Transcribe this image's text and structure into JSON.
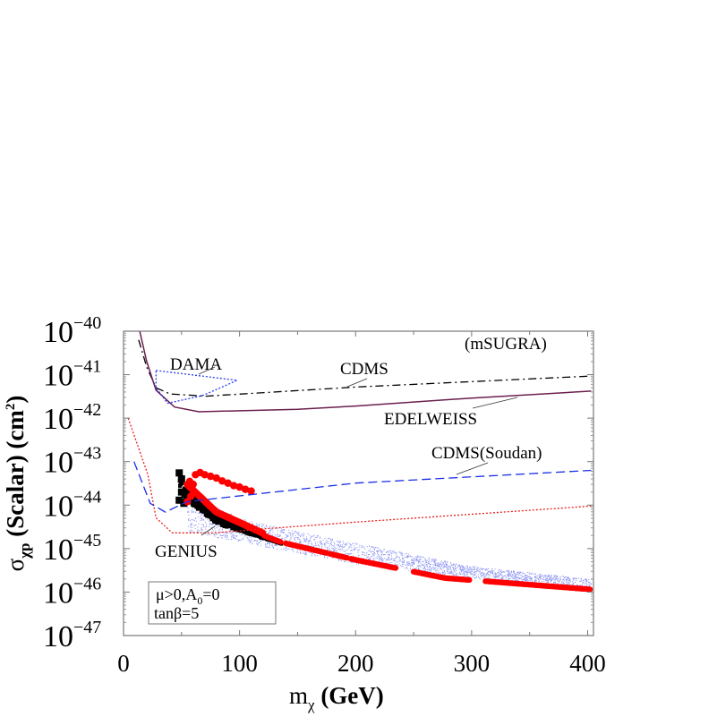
{
  "chart_data": {
    "type": "scatter",
    "title": "",
    "xlabel": "m",
    "xlabel_sub": "χ",
    "xlabel_unit": "(GeV)",
    "ylabel": "σ",
    "ylabel_sub": "χp",
    "ylabel_rest": "(Scalar) (cm",
    "ylabel_sup": "2",
    "ylabel_end": ")",
    "xlim": [
      0,
      405
    ],
    "ylim": [
      1e-47,
      1e-40
    ],
    "yscale": "log",
    "grid": false,
    "x_ticks": [
      0,
      100,
      200,
      300,
      400
    ],
    "y_ticks": [
      {
        "base": "10",
        "exp": "−40",
        "value": 1e-40
      },
      {
        "base": "10",
        "exp": "−41",
        "value": 1e-41
      },
      {
        "base": "10",
        "exp": "−42",
        "value": 1e-42
      },
      {
        "base": "10",
        "exp": "−43",
        "value": 1e-43
      },
      {
        "base": "10",
        "exp": "−44",
        "value": 1e-44
      },
      {
        "base": "10",
        "exp": "−45",
        "value": 1e-45
      },
      {
        "base": "10",
        "exp": "−46",
        "value": 1e-46
      },
      {
        "base": "10",
        "exp": "−47",
        "value": 1e-47
      }
    ],
    "annotation": "(mSUGRA)",
    "legend_box": {
      "line1": "μ>0,A",
      "line1_sub": "0",
      "line1_end": "=0",
      "line2": "tanβ=5"
    },
    "curves": [
      {
        "name": "CDMS",
        "color": "#000000",
        "style": "dashdot",
        "points": [
          [
            13,
            6.3e-41
          ],
          [
            20,
            1.5e-41
          ],
          [
            28,
            5e-42
          ],
          [
            40,
            3.6e-42
          ],
          [
            71,
            3.2e-42
          ],
          [
            200,
            5.2e-42
          ],
          [
            403,
            9.3e-42
          ]
        ]
      },
      {
        "name": "EDELWEISS",
        "color": "#6b1f4f",
        "style": "solid",
        "points": [
          [
            14,
            1e-40
          ],
          [
            20,
            2e-41
          ],
          [
            28,
            4.4e-42
          ],
          [
            44,
            1.8e-42
          ],
          [
            65,
            1.4e-42
          ],
          [
            150,
            1.6e-42
          ],
          [
            200,
            1.9e-42
          ],
          [
            300,
            2.9e-42
          ],
          [
            403,
            4.2e-42
          ]
        ]
      },
      {
        "name": "DAMA",
        "color": "#2b3cf0",
        "style": "dotted",
        "points": [
          [
            28,
            1.25e-41
          ],
          [
            98,
            7.4e-42
          ],
          [
            68,
            3.3e-42
          ],
          [
            38,
            2.2e-42
          ],
          [
            28,
            5e-42
          ],
          [
            28,
            1.25e-41
          ]
        ]
      },
      {
        "name": "GENIUS",
        "color": "#e8201c",
        "style": "dotted",
        "points": [
          [
            4,
            1e-42
          ],
          [
            21,
            5e-44
          ],
          [
            28,
            5.1e-45
          ],
          [
            42,
            2.3e-45
          ],
          [
            78,
            2.3e-45
          ],
          [
            125,
            2.9e-45
          ],
          [
            202,
            4.1e-45
          ],
          [
            403,
            9.5e-45
          ]
        ]
      },
      {
        "name": "CDMS(Soudan)",
        "color": "#1a2fe8",
        "style": "dashed",
        "points": [
          [
            9,
            1e-43
          ],
          [
            23,
            1.1e-44
          ],
          [
            36,
            6.9e-45
          ],
          [
            55,
            1.2e-44
          ],
          [
            200,
            3.2e-44
          ],
          [
            403,
            6.3e-44
          ]
        ]
      }
    ],
    "scatter": {
      "blue_band": {
        "color": "#8a93f0",
        "upper": [
          [
            55,
            2e-44
          ],
          [
            100,
            5e-45
          ],
          [
            150,
            2.5e-45
          ],
          [
            300,
            4e-46
          ],
          [
            403,
            2e-46
          ]
        ],
        "lower": [
          [
            55,
            2.5e-45
          ],
          [
            130,
            1e-45
          ],
          [
            200,
            4.5e-46
          ],
          [
            403,
            1e-46
          ]
        ]
      },
      "main_line": [
        [
          45,
          5e-44
        ],
        [
          52,
          3.2e-44
        ],
        [
          80,
          6.3e-45
        ],
        [
          125,
          1.8e-45
        ],
        [
          136,
          1.4e-45
        ],
        [
          200,
          5.5e-46
        ],
        [
          277,
          2.1e-46
        ],
        [
          403,
          1.15e-46
        ]
      ],
      "black": {
        "color": "#000000",
        "x_range": [
          45,
          136
        ],
        "start": [
          [
            48,
            5.5e-44
          ],
          [
            50,
            4e-44
          ],
          [
            50,
            2e-44
          ],
          [
            48,
            1.3e-44
          ],
          [
            52,
            1.1e-44
          ]
        ]
      },
      "red_line": {
        "color": "#ff0000",
        "segments": [
          [
            55,
            136
          ],
          [
            140,
            175
          ],
          [
            178,
            193
          ],
          [
            196,
            235
          ],
          [
            250,
            298
          ],
          [
            312,
            403
          ]
        ]
      },
      "red_cluster": {
        "color": "#ff0000",
        "points": [
          [
            57,
            3.5e-44
          ],
          [
            60,
            3e-44
          ],
          [
            62,
            5e-44
          ],
          [
            66,
            5.6e-44
          ],
          [
            70,
            5e-44
          ],
          [
            75,
            4.6e-44
          ],
          [
            80,
            4.2e-44
          ],
          [
            85,
            3.6e-44
          ],
          [
            90,
            3.2e-44
          ],
          [
            95,
            2.8e-44
          ],
          [
            100,
            2.6e-44
          ],
          [
            105,
            2.3e-44
          ],
          [
            110,
            2.1e-44
          ],
          [
            58,
            1.6e-44
          ],
          [
            55,
            1.2e-44
          ]
        ]
      }
    }
  }
}
